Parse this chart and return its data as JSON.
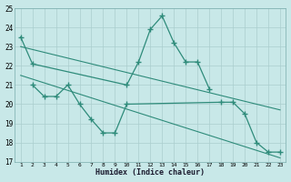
{
  "color": "#2e8b7a",
  "bg_color": "#c8e8e8",
  "grid_color": "#aacece",
  "xlabel": "Humidex (Indice chaleur)",
  "ylim": [
    17,
    25
  ],
  "xlim": [
    1,
    23
  ],
  "yticks": [
    17,
    18,
    19,
    20,
    21,
    22,
    23,
    24,
    25
  ],
  "xticks": [
    1,
    2,
    3,
    4,
    5,
    6,
    7,
    8,
    9,
    10,
    11,
    12,
    13,
    14,
    15,
    16,
    17,
    18,
    19,
    20,
    21,
    22,
    23
  ],
  "line_upper_x": [
    1,
    2,
    10,
    11,
    12,
    13,
    14,
    15,
    16,
    17
  ],
  "line_upper_y": [
    23.5,
    22.1,
    21.0,
    22.2,
    23.9,
    24.6,
    23.2,
    22.2,
    22.2,
    20.8
  ],
  "line_lower_x": [
    2,
    3,
    4,
    5,
    6,
    7,
    8,
    9,
    10,
    18,
    19,
    20,
    21,
    22,
    23
  ],
  "line_lower_y": [
    21.0,
    20.4,
    20.4,
    21.0,
    20.0,
    19.2,
    18.5,
    18.5,
    20.0,
    20.1,
    20.1,
    19.5,
    18.0,
    17.5,
    17.5
  ],
  "trend1_x": [
    1,
    23
  ],
  "trend1_y": [
    23.0,
    19.7
  ],
  "trend2_x": [
    1,
    23
  ],
  "trend2_y": [
    21.5,
    17.2
  ]
}
